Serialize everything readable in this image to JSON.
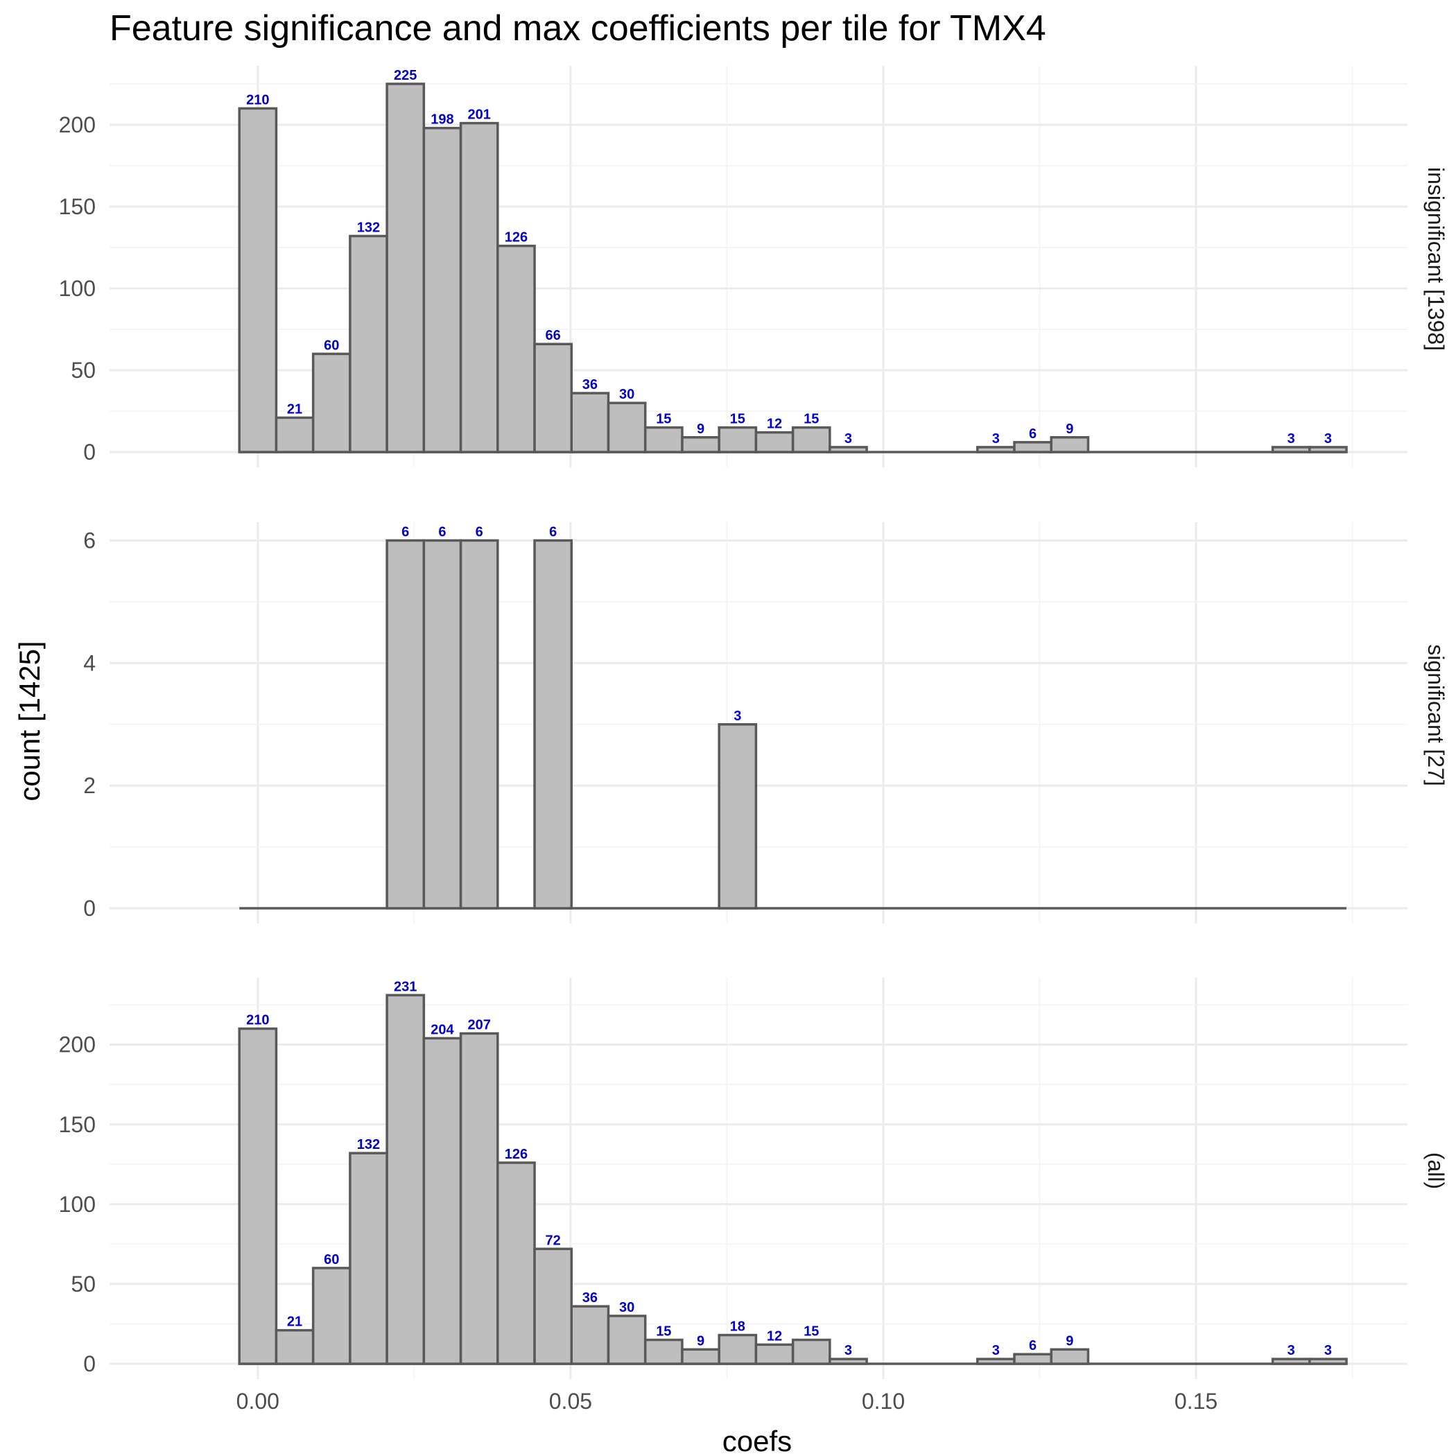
{
  "chart_data": {
    "type": "bar",
    "title": "Feature significance and max coefficients per tile for TMX4",
    "xlabel": "coefs",
    "ylabel": "count [1425]",
    "x_ticks": [
      "0.00",
      "0.05",
      "0.10",
      "0.15"
    ],
    "bin_width": 0.0059,
    "bin_start": -0.00295,
    "label_color": "#0000cd",
    "bar_fill": "#bebebe",
    "bar_stroke": "#595959",
    "panels": [
      {
        "name": "insignificant [1398]",
        "yticks": [
          "0",
          "50",
          "100",
          "150",
          "200"
        ],
        "ylim": [
          0,
          236
        ],
        "counts": [
          210,
          21,
          60,
          132,
          225,
          198,
          201,
          126,
          66,
          36,
          30,
          15,
          9,
          15,
          12,
          15,
          3,
          0,
          0,
          0,
          3,
          6,
          9,
          0,
          0,
          0,
          0,
          0,
          3,
          3
        ],
        "labels": [
          "210",
          "21",
          "60",
          "132",
          "225",
          "198",
          "201",
          "126",
          "66",
          "36",
          "30",
          "15",
          "9",
          "15",
          "12",
          "15",
          "3",
          "",
          "",
          "",
          "3",
          "6",
          "9",
          "",
          "",
          "",
          "",
          "",
          "3",
          "3"
        ]
      },
      {
        "name": "significant [27]",
        "yticks": [
          "0",
          "2",
          "4",
          "6"
        ],
        "ylim": [
          0,
          6.3
        ],
        "counts": [
          0,
          0,
          0,
          0,
          6,
          6,
          6,
          0,
          6,
          0,
          0,
          0,
          0,
          3,
          0,
          0,
          0,
          0,
          0,
          0,
          0,
          0,
          0,
          0,
          0,
          0,
          0,
          0,
          0,
          0
        ],
        "labels": [
          "",
          "",
          "",
          "",
          "6",
          "6",
          "6",
          "",
          "6",
          "",
          "",
          "",
          "",
          "3",
          "",
          "",
          "",
          "",
          "",
          "",
          "",
          "",
          "",
          "",
          "",
          "",
          "",
          "",
          "",
          ""
        ]
      },
      {
        "name": "(all)",
        "yticks": [
          "0",
          "50",
          "100",
          "150",
          "200"
        ],
        "ylim": [
          0,
          242
        ],
        "counts": [
          210,
          21,
          60,
          132,
          231,
          204,
          207,
          126,
          72,
          36,
          30,
          15,
          9,
          18,
          12,
          15,
          3,
          0,
          0,
          0,
          3,
          6,
          9,
          0,
          0,
          0,
          0,
          0,
          3,
          3
        ],
        "labels": [
          "210",
          "21",
          "60",
          "132",
          "231",
          "204",
          "207",
          "126",
          "72",
          "36",
          "30",
          "15",
          "9",
          "18",
          "12",
          "15",
          "3",
          "",
          "",
          "",
          "3",
          "6",
          "9",
          "",
          "",
          "",
          "",
          "",
          "3",
          "3"
        ]
      }
    ]
  }
}
